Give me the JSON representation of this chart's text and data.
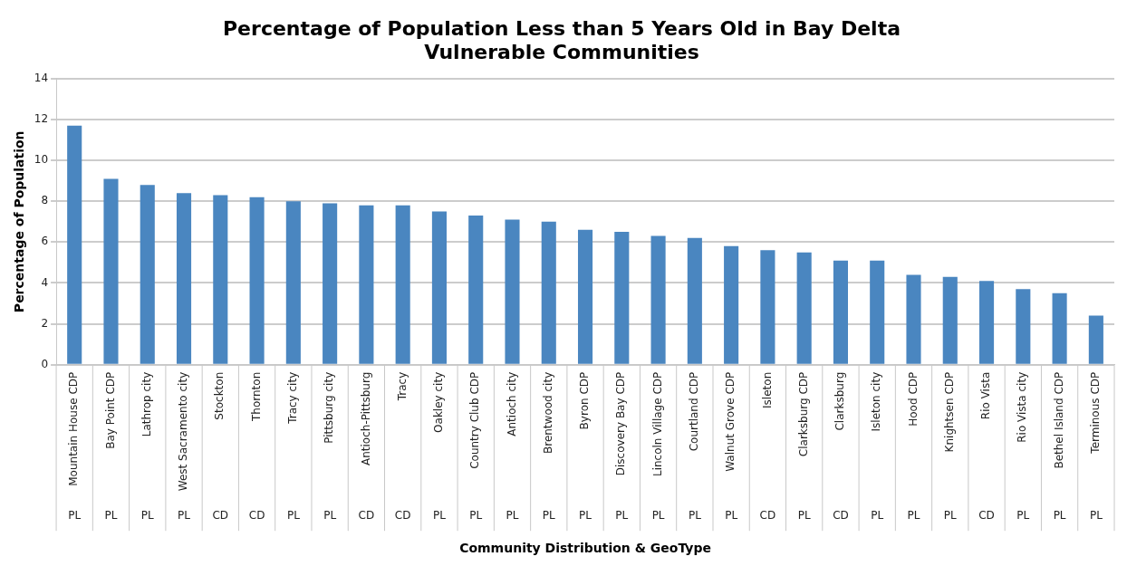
{
  "chart_data": {
    "type": "bar",
    "title": "Percentage of Population Less than 5 Years Old in Bay Delta Vulnerable Communities",
    "xlabel": "Community Distribution & GeoType",
    "ylabel": "Percentage of Population",
    "categories": [
      "Mountain House CDP",
      "Bay Point CDP",
      "Lathrop city",
      "West Sacramento city",
      "Stockton",
      "Thornton",
      "Tracy city",
      "Pittsburg city",
      "Antioch-Pittsburg",
      "Tracy",
      "Oakley city",
      "Country Club CDP",
      "Antioch city",
      "Brentwood city",
      "Byron CDP",
      "Discovery Bay CDP",
      "Lincoln Village CDP",
      "Courtland CDP",
      "Walnut Grove CDP",
      "Isleton",
      "Clarksburg CDP",
      "Clarksburg",
      "Isleton city",
      "Hood CDP",
      "Knightsen CDP",
      "Rio Vista",
      "Rio Vista city",
      "Bethel Island CDP",
      "Terminous CDP"
    ],
    "values": [
      11.7,
      9.1,
      8.8,
      8.4,
      8.3,
      8.2,
      8.0,
      7.9,
      7.8,
      7.8,
      7.5,
      7.3,
      7.1,
      7.0,
      6.6,
      6.5,
      6.3,
      6.2,
      5.8,
      5.6,
      5.5,
      5.1,
      5.1,
      4.4,
      4.3,
      4.1,
      3.7,
      3.5,
      2.4
    ],
    "color": "#4a86c0",
    "ylim": [
      0,
      14
    ],
    "yticks": [
      0,
      2,
      4,
      6,
      8,
      10,
      12,
      14
    ],
    "grid": "y",
    "legend": false,
    "annotations": [
      "PL",
      "PL",
      "PL",
      "PL",
      "CD",
      "CD",
      "PL",
      "PL",
      "CD",
      "CD",
      "PL",
      "PL",
      "PL",
      "PL",
      "PL",
      "PL",
      "PL",
      "PL",
      "PL",
      "CD",
      "PL",
      "CD",
      "PL",
      "PL",
      "PL",
      "CD",
      "PL",
      "PL",
      "PL"
    ]
  }
}
